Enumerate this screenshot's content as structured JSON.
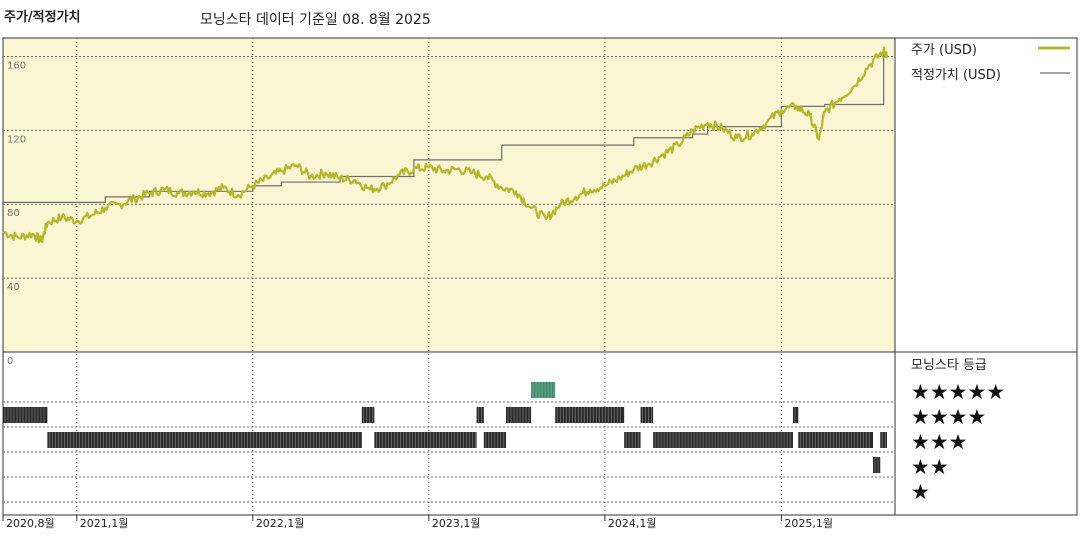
{
  "header": {
    "title": "주가/적정가치",
    "subtitle": "모닝스타 데이터 기준일 08. 8월 2025"
  },
  "colors": {
    "price_line": "#b5b72a",
    "fair_value_line": "#707070",
    "plot_bg": "#faf5d3",
    "rating_bar": "#2a2a2a",
    "five_star_bar": "#3f8a6a"
  },
  "chart_data": {
    "type": "line",
    "x_axis": {
      "start": "2020-08",
      "end": "2025-08",
      "ticks": [
        "2020,8월",
        "2021,1월",
        "2022,1월",
        "2023,1월",
        "2024,1월",
        "2025,1월"
      ],
      "tick_dates": [
        "2020-08-01",
        "2021-01-01",
        "2022-01-01",
        "2023-01-01",
        "2024-01-01",
        "2025-01-01"
      ]
    },
    "y_axis": {
      "ylim": [
        0,
        170
      ],
      "ticks": [
        "0",
        "40",
        "80",
        "120",
        "160"
      ],
      "tick_values": [
        0,
        40,
        80,
        120,
        160
      ]
    },
    "grid": true,
    "legend_position": "right",
    "series": [
      {
        "name": "주가 (USD)",
        "points": [
          [
            "2020-08-01",
            65
          ],
          [
            "2020-09-01",
            62
          ],
          [
            "2020-10-01",
            64
          ],
          [
            "2020-10-20",
            60
          ],
          [
            "2020-11-01",
            70
          ],
          [
            "2020-12-01",
            73
          ],
          [
            "2021-01-01",
            71
          ],
          [
            "2021-02-01",
            74
          ],
          [
            "2021-03-01",
            78
          ],
          [
            "2021-04-01",
            80
          ],
          [
            "2021-05-01",
            83
          ],
          [
            "2021-06-01",
            86
          ],
          [
            "2021-07-01",
            88
          ],
          [
            "2021-08-01",
            86
          ],
          [
            "2021-09-01",
            87
          ],
          [
            "2021-10-01",
            86
          ],
          [
            "2021-11-01",
            89
          ],
          [
            "2021-12-01",
            85
          ],
          [
            "2022-01-01",
            90
          ],
          [
            "2022-02-01",
            94
          ],
          [
            "2022-03-01",
            98
          ],
          [
            "2022-04-01",
            101
          ],
          [
            "2022-05-01",
            95
          ],
          [
            "2022-06-01",
            97
          ],
          [
            "2022-07-01",
            94
          ],
          [
            "2022-08-01",
            93
          ],
          [
            "2022-09-01",
            88
          ],
          [
            "2022-10-01",
            90
          ],
          [
            "2022-11-01",
            96
          ],
          [
            "2022-12-01",
            99
          ],
          [
            "2023-01-01",
            100
          ],
          [
            "2023-02-01",
            98
          ],
          [
            "2023-03-01",
            99
          ],
          [
            "2023-04-01",
            97
          ],
          [
            "2023-05-01",
            95
          ],
          [
            "2023-06-01",
            89
          ],
          [
            "2023-07-01",
            87
          ],
          [
            "2023-08-01",
            78
          ],
          [
            "2023-09-01",
            72
          ],
          [
            "2023-10-01",
            80
          ],
          [
            "2023-11-01",
            84
          ],
          [
            "2023-12-01",
            88
          ],
          [
            "2024-01-01",
            90
          ],
          [
            "2024-02-01",
            94
          ],
          [
            "2024-03-01",
            99
          ],
          [
            "2024-04-01",
            102
          ],
          [
            "2024-05-01",
            107
          ],
          [
            "2024-06-01",
            112
          ],
          [
            "2024-07-01",
            120
          ],
          [
            "2024-08-01",
            124
          ],
          [
            "2024-09-01",
            121
          ],
          [
            "2024-10-01",
            116
          ],
          [
            "2024-11-01",
            118
          ],
          [
            "2024-12-01",
            124
          ],
          [
            "2025-01-01",
            131
          ],
          [
            "2025-02-01",
            133
          ],
          [
            "2025-03-01",
            128
          ],
          [
            "2025-03-20",
            115
          ],
          [
            "2025-04-01",
            130
          ],
          [
            "2025-05-01",
            137
          ],
          [
            "2025-06-01",
            144
          ],
          [
            "2025-07-01",
            155
          ],
          [
            "2025-08-01",
            163
          ],
          [
            "2025-08-08",
            161
          ]
        ]
      },
      {
        "name": "적정가치 (USD)",
        "steps": [
          [
            "2020-08-01",
            81
          ],
          [
            "2021-03-01",
            84
          ],
          [
            "2021-06-01",
            87
          ],
          [
            "2022-01-01",
            90
          ],
          [
            "2022-03-01",
            92
          ],
          [
            "2022-07-01",
            95
          ],
          [
            "2022-12-01",
            104
          ],
          [
            "2023-06-01",
            112
          ],
          [
            "2024-03-01",
            116
          ],
          [
            "2024-07-01",
            118
          ],
          [
            "2024-08-01",
            122
          ],
          [
            "2024-11-01",
            122
          ],
          [
            "2025-01-01",
            133
          ],
          [
            "2025-04-01",
            134
          ],
          [
            "2025-07-01",
            134
          ],
          [
            "2025-08-01",
            162
          ]
        ]
      }
    ]
  },
  "rating_panel": {
    "title": "모닝스타 등급",
    "levels": [
      "★★★★★",
      "★★★★",
      "★★★",
      "★★",
      "★"
    ],
    "periods": [
      {
        "stars": 4,
        "start": "2020-08-01",
        "end": "2020-11-01"
      },
      {
        "stars": 3,
        "start": "2020-11-01",
        "end": "2022-08-15"
      },
      {
        "stars": 4,
        "start": "2022-08-15",
        "end": "2022-09-10"
      },
      {
        "stars": 3,
        "start": "2022-09-10",
        "end": "2023-04-10"
      },
      {
        "stars": 4,
        "start": "2023-04-10",
        "end": "2023-04-25"
      },
      {
        "stars": 3,
        "start": "2023-04-25",
        "end": "2023-06-10"
      },
      {
        "stars": 4,
        "start": "2023-06-10",
        "end": "2023-08-01"
      },
      {
        "stars": 5,
        "start": "2023-08-01",
        "end": "2023-09-20"
      },
      {
        "stars": 4,
        "start": "2023-09-20",
        "end": "2024-02-10"
      },
      {
        "stars": 3,
        "start": "2024-02-10",
        "end": "2024-03-15"
      },
      {
        "stars": 4,
        "start": "2024-03-15",
        "end": "2024-04-10"
      },
      {
        "stars": 3,
        "start": "2024-04-10",
        "end": "2025-01-25"
      },
      {
        "stars": 4,
        "start": "2025-01-25",
        "end": "2025-02-05"
      },
      {
        "stars": 3,
        "start": "2025-02-05",
        "end": "2025-07-10"
      },
      {
        "stars": 2,
        "start": "2025-07-10",
        "end": "2025-07-25"
      },
      {
        "stars": 3,
        "start": "2025-07-25",
        "end": "2025-08-08"
      }
    ]
  }
}
